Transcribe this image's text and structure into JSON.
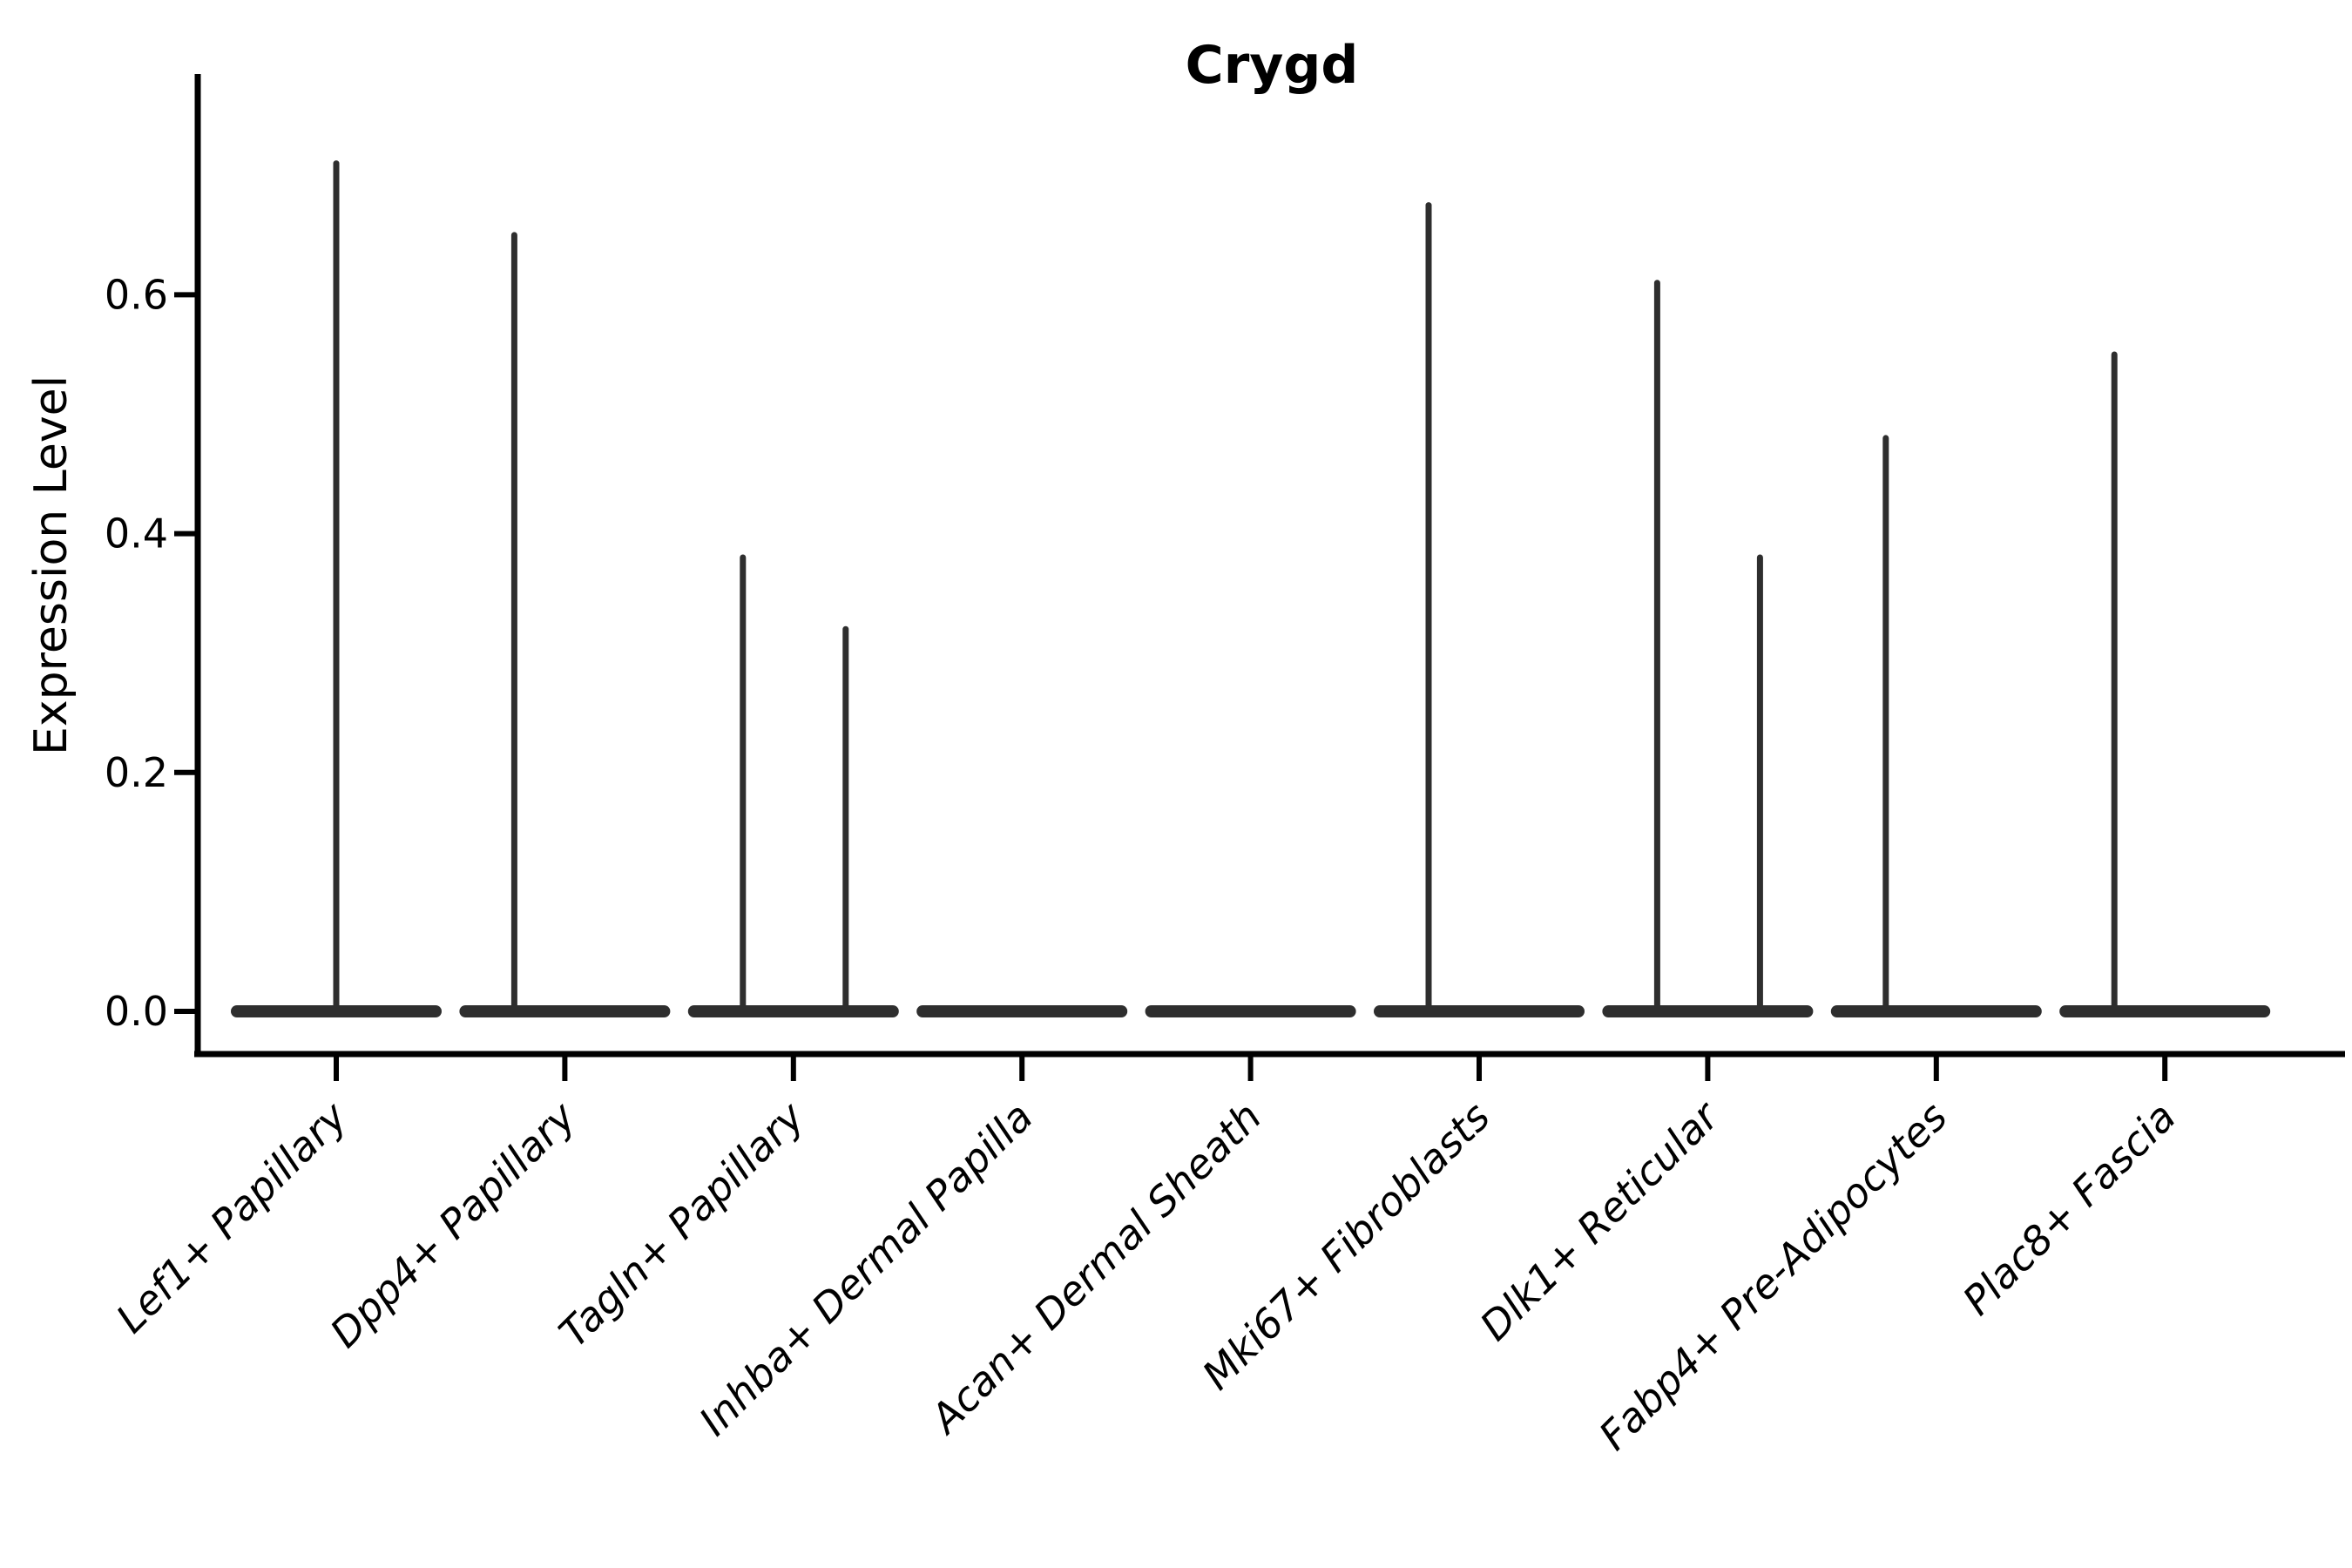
{
  "figure": {
    "background": "#ffffff",
    "violin_color": "#2e2e2e",
    "axis_color": "#000000"
  },
  "chart_data": {
    "type": "violin",
    "title": "Crygd",
    "xlabel": "",
    "ylabel": "Expression Level",
    "grid": false,
    "legend": null,
    "ylim": [
      -0.036,
      0.785
    ],
    "yticks": [
      {
        "value": 0.0,
        "label": "0.0"
      },
      {
        "value": 0.2,
        "label": "0.2"
      },
      {
        "value": 0.4,
        "label": "0.4"
      },
      {
        "value": 0.6,
        "label": "0.6"
      }
    ],
    "categories": [
      "Lef1+ Papillary",
      "Dpp4+ Papillary",
      "Tagln+ Papillary",
      "Inhba+ Dermal Papilla",
      "Acan+ Dermal Sheath",
      "Mki67+ Fibroblasts",
      "Dlk1+ Reticular",
      "Fabp4+ Pre-Adipocytes",
      "Plac8+ Fascia"
    ],
    "baseline_value": 0.0,
    "series": [
      {
        "label": "Lef1+ Papillary",
        "bulk_at": 0.0,
        "spikes": [
          {
            "position": "center",
            "value": 0.71
          }
        ]
      },
      {
        "label": "Dpp4+ Papillary",
        "bulk_at": 0.0,
        "spikes": [
          {
            "position": "left",
            "value": 0.65
          }
        ]
      },
      {
        "label": "Tagln+ Papillary",
        "bulk_at": 0.0,
        "spikes": [
          {
            "position": "left",
            "value": 0.38
          },
          {
            "position": "right",
            "value": 0.32
          }
        ]
      },
      {
        "label": "Inhba+ Dermal Papilla",
        "bulk_at": 0.0,
        "spikes": []
      },
      {
        "label": "Acan+ Dermal Sheath",
        "bulk_at": 0.0,
        "spikes": []
      },
      {
        "label": "Mki67+ Fibroblasts",
        "bulk_at": 0.0,
        "spikes": [
          {
            "position": "left",
            "value": 0.675
          }
        ]
      },
      {
        "label": "Dlk1+ Reticular",
        "bulk_at": 0.0,
        "spikes": [
          {
            "position": "left",
            "value": 0.61
          },
          {
            "position": "right",
            "value": 0.38
          }
        ]
      },
      {
        "label": "Fabp4+ Pre-Adipocytes",
        "bulk_at": 0.0,
        "spikes": [
          {
            "position": "left",
            "value": 0.48
          }
        ]
      },
      {
        "label": "Plac8+ Fascia",
        "bulk_at": 0.0,
        "spikes": [
          {
            "position": "left",
            "value": 0.55
          }
        ]
      }
    ]
  }
}
